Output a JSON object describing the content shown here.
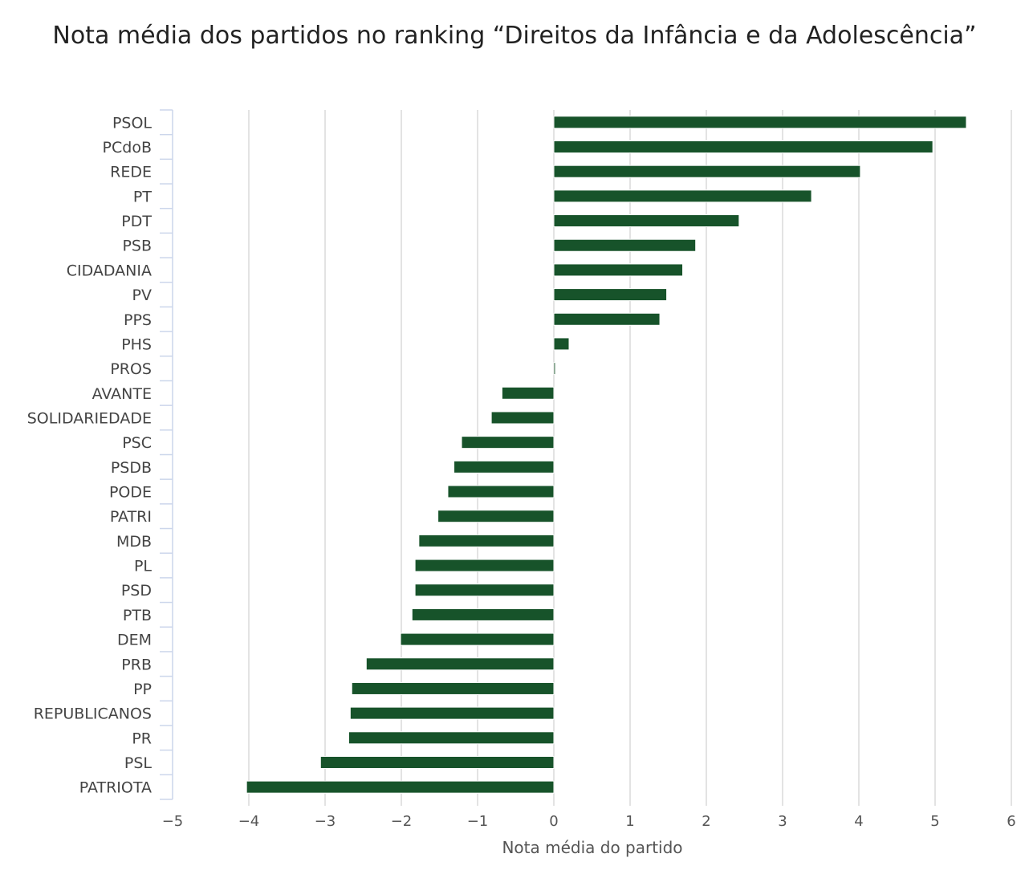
{
  "chart_data": {
    "type": "bar",
    "orientation": "horizontal",
    "title": "Nota média dos partidos no ranking “Direitos da Infância e da Adolescência”",
    "xlabel": "Nota média do partido",
    "ylabel": "",
    "xlim": [
      -5,
      6
    ],
    "xticks": [
      -5,
      -4,
      -3,
      -2,
      -1,
      0,
      1,
      2,
      3,
      4,
      5,
      6
    ],
    "xtick_labels": [
      "−5",
      "−4",
      "−3",
      "−2",
      "−1",
      "0",
      "1",
      "2",
      "3",
      "4",
      "5",
      "6"
    ],
    "grid": true,
    "bar_color": "#17532a",
    "categories": [
      "PSOL",
      "PCdoB",
      "REDE",
      "PT",
      "PDT",
      "PSB",
      "CIDADANIA",
      "PV",
      "PPS",
      "PHS",
      "PROS",
      "AVANTE",
      "SOLIDARIEDADE",
      "PSC",
      "PSDB",
      "PODE",
      "PATRI",
      "MDB",
      "PL",
      "PSD",
      "PTB",
      "DEM",
      "PRB",
      "PP",
      "REPUBLICANOS",
      "PR",
      "PSL",
      "PATRIOTA"
    ],
    "values": [
      5.41,
      4.97,
      4.02,
      3.38,
      2.43,
      1.86,
      1.69,
      1.48,
      1.39,
      0.2,
      0.02,
      -0.68,
      -0.82,
      -1.21,
      -1.31,
      -1.39,
      -1.52,
      -1.77,
      -1.82,
      -1.82,
      -1.86,
      -2.01,
      -2.46,
      -2.65,
      -2.67,
      -2.69,
      -3.06,
      -4.03
    ]
  }
}
